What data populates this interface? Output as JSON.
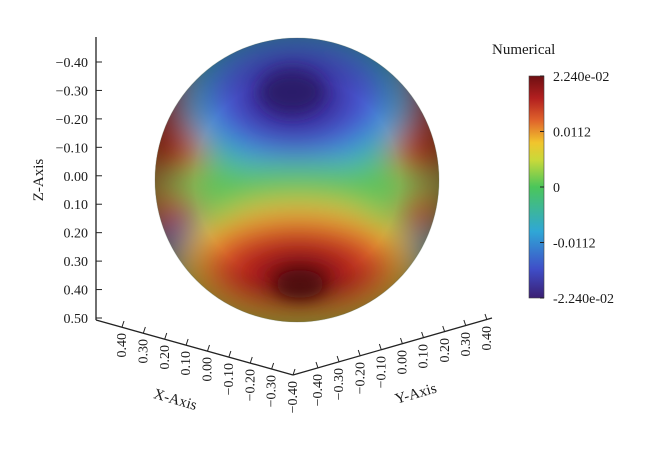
{
  "chart_data": {
    "type": "heatmap",
    "subtype": "3d-sphere-surface",
    "colorbar": {
      "title": "Numerical",
      "tick_labels": [
        "2.240e-02",
        "0.0112",
        "0",
        "-0.0112",
        "-2.240e-02"
      ],
      "tick_values": [
        0.0224,
        0.0112,
        0,
        -0.0112,
        -0.0224
      ],
      "range": [
        -0.0224,
        0.0224
      ],
      "colormap": [
        "#3b1f73",
        "#3f4ec8",
        "#2fa7d6",
        "#4bc65a",
        "#c8d93a",
        "#f1c52d",
        "#e0632b",
        "#b21f1f",
        "#6e0f12"
      ]
    },
    "axes": {
      "z": {
        "label": "Z-Axis",
        "tick_labels": [
          "−0.40",
          "−0.30",
          "−0.20",
          "−0.10",
          "0.00",
          "0.10",
          "0.20",
          "0.30",
          "0.40",
          "0.50"
        ],
        "range": [
          -0.4,
          0.5
        ]
      },
      "x": {
        "label": "X-Axis",
        "tick_labels": [
          "0.40",
          "0.30",
          "0.20",
          "0.10",
          "0.00",
          "−0.10",
          "−0.20",
          "−0.30",
          "−0.40"
        ],
        "range": [
          0.4,
          -0.4
        ]
      },
      "y": {
        "label": "Y-Axis",
        "tick_labels": [
          "−0.40",
          "−0.30",
          "−0.20",
          "−0.10",
          "0.00",
          "0.10",
          "0.20",
          "0.30",
          "0.40"
        ],
        "range": [
          -0.4,
          0.4
        ]
      }
    },
    "surface": {
      "shape": "sphere",
      "radius": 0.5,
      "field_pattern": "negative minimum near top center, positive maximum near bottom center, positive bands on left and right limbs, near-zero band around the equator",
      "min_value": -0.0224,
      "max_value": 0.0224
    }
  }
}
